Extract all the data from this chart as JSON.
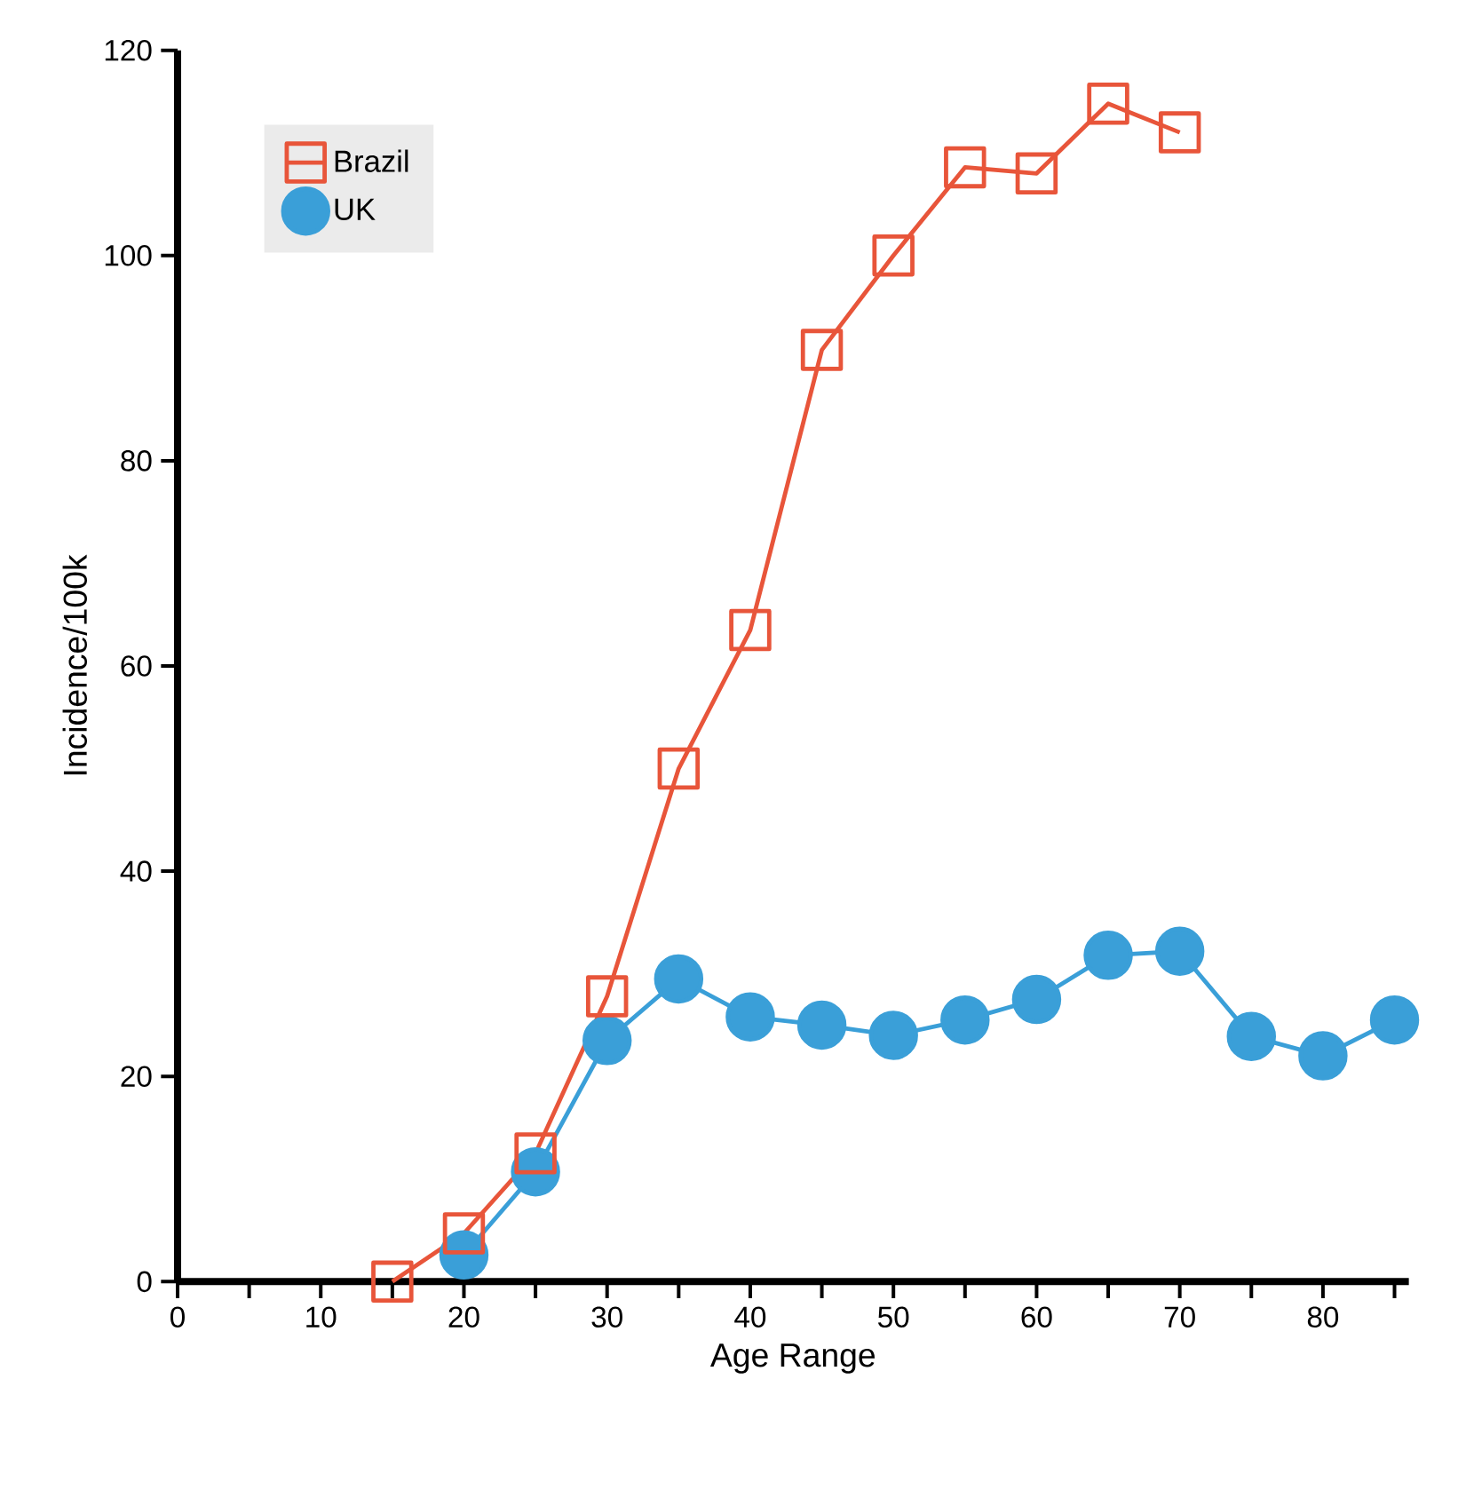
{
  "chart_data": {
    "type": "line",
    "xlabel": "Age Range",
    "ylabel": "Incidence/100k",
    "xlim": [
      0,
      86
    ],
    "ylim": [
      0,
      120
    ],
    "xticks": [
      0,
      {
        "value": 5,
        "label": null
      },
      10,
      {
        "value": 15,
        "label": null
      },
      20,
      {
        "value": 25,
        "label": null
      },
      30,
      {
        "value": 35,
        "label": null
      },
      40,
      {
        "value": 45,
        "label": null
      },
      50,
      {
        "value": 55,
        "label": null
      },
      60,
      {
        "value": 65,
        "label": null
      },
      70,
      {
        "value": 75,
        "label": null
      },
      80,
      {
        "value": 85,
        "label": null
      }
    ],
    "yticks": [
      0,
      20,
      40,
      60,
      80,
      100,
      120
    ],
    "grid": false,
    "legend": "top left",
    "series": [
      {
        "name": "Brazil",
        "color": "#e8553a",
        "marker": "square",
        "x": [
          15,
          20,
          25,
          30,
          35,
          40,
          45,
          50,
          55,
          60,
          65,
          70
        ],
        "values": [
          0,
          4.7,
          12.5,
          27.8,
          50,
          63.5,
          90.8,
          100,
          108.6,
          108,
          114.8,
          112
        ]
      },
      {
        "name": "UK",
        "color": "#3a9fd8",
        "marker": "circle",
        "x": [
          20,
          25,
          30,
          35,
          40,
          45,
          50,
          55,
          60,
          65,
          70,
          75,
          80,
          85
        ],
        "values": [
          2.6,
          10.7,
          23.5,
          29.5,
          25.8,
          25,
          24,
          25.5,
          27.5,
          31.8,
          32.2,
          23.9,
          22,
          25.5
        ]
      }
    ]
  }
}
